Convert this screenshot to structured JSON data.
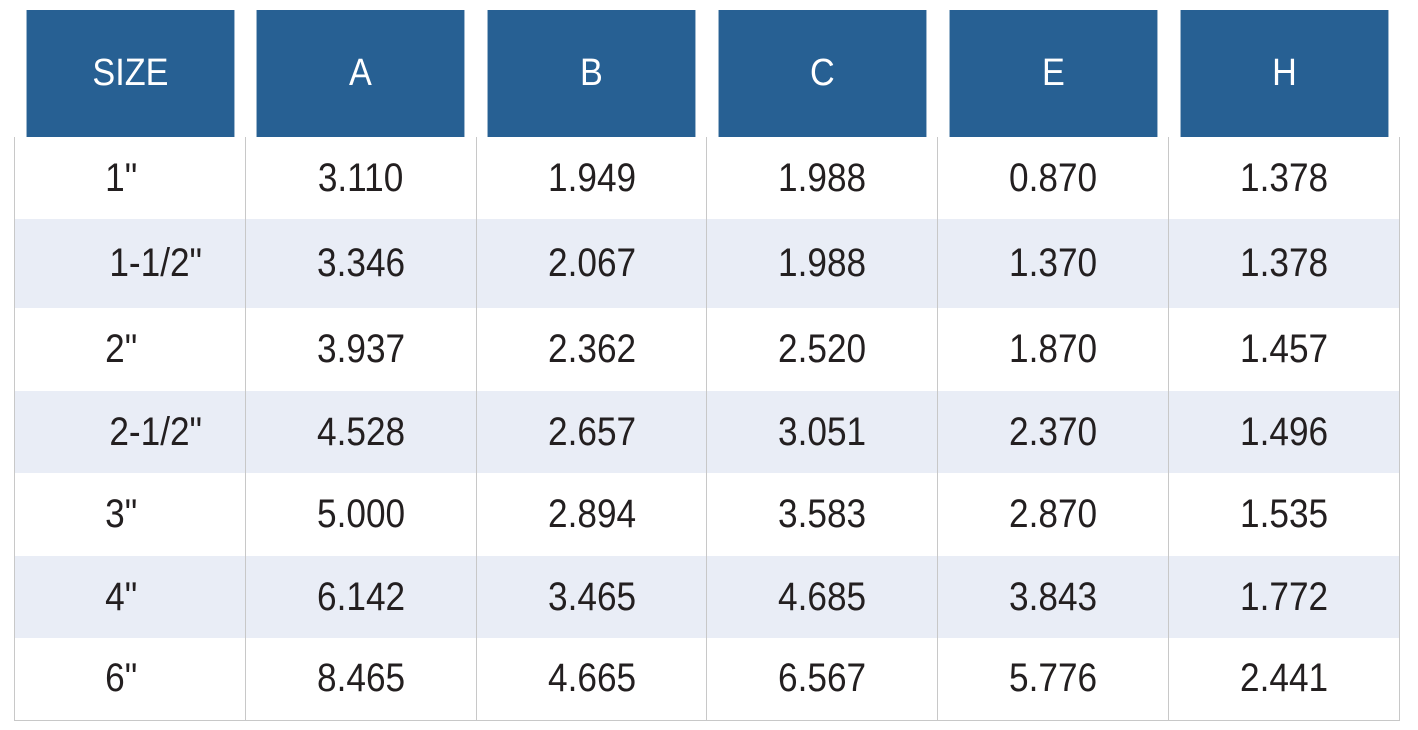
{
  "table": {
    "headers": [
      "SIZE",
      "A",
      "B",
      "C",
      "E",
      "H"
    ],
    "header_color": "#276093",
    "stripe_color": "#e9edf6",
    "rows": [
      [
        "1\"",
        "3.110",
        "1.949",
        "1.988",
        "0.870",
        "1.378"
      ],
      [
        "1-1/2\"",
        "3.346",
        "2.067",
        "1.988",
        "1.370",
        "1.378"
      ],
      [
        "2\"",
        "3.937",
        "2.362",
        "2.520",
        "1.870",
        "1.457"
      ],
      [
        "2-1/2\"",
        "4.528",
        "2.657",
        "3.051",
        "2.370",
        "1.496"
      ],
      [
        "3\"",
        "5.000",
        "2.894",
        "3.583",
        "2.870",
        "1.535"
      ],
      [
        "4\"",
        "6.142",
        "3.465",
        "4.685",
        "3.843",
        "1.772"
      ],
      [
        "6\"",
        "8.465",
        "4.665",
        "6.567",
        "5.776",
        "2.441"
      ]
    ]
  }
}
